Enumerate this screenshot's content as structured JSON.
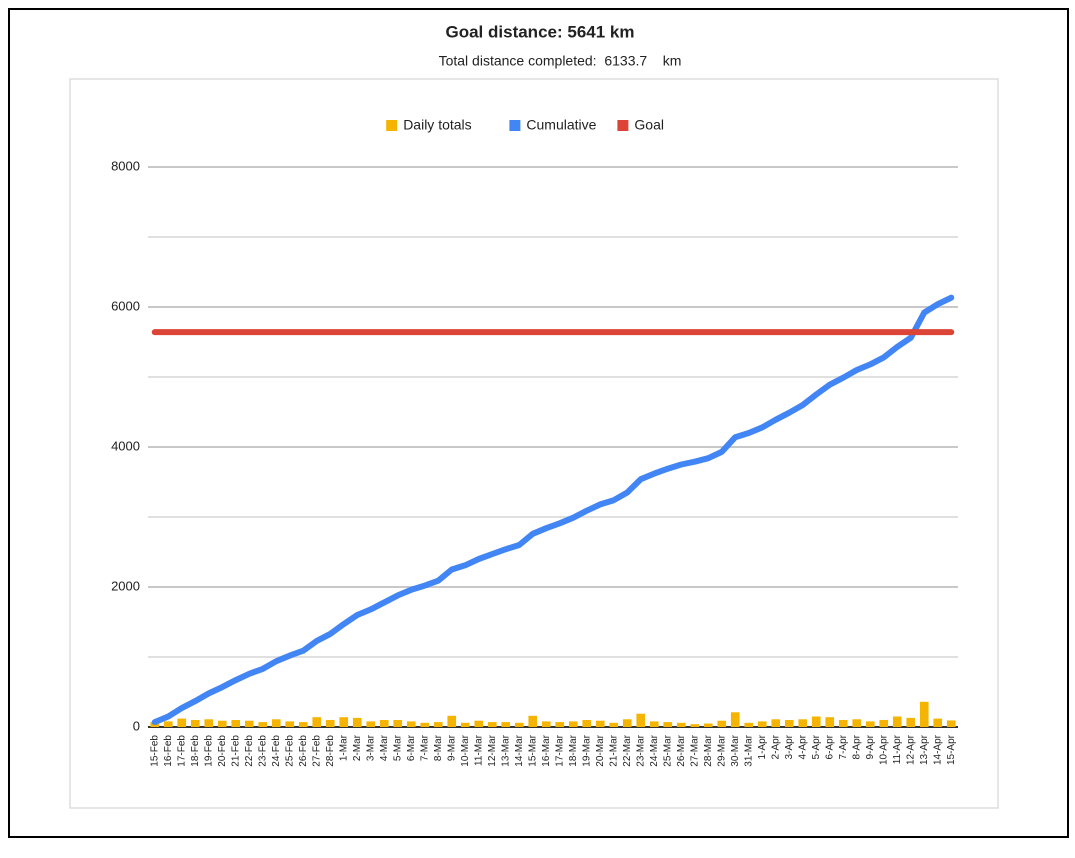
{
  "chart_data": {
    "type": "combo",
    "title": "Goal distance: 5641 km",
    "subtitle": "Total distance completed:  6133.7    km",
    "categories": [
      "15-Feb",
      "16-Feb",
      "17-Feb",
      "18-Feb",
      "19-Feb",
      "20-Feb",
      "21-Feb",
      "22-Feb",
      "23-Feb",
      "24-Feb",
      "25-Feb",
      "26-Feb",
      "27-Feb",
      "28-Feb",
      "1-Mar",
      "2-Mar",
      "3-Mar",
      "4-Mar",
      "5-Mar",
      "6-Mar",
      "7-Mar",
      "8-Mar",
      "9-Mar",
      "10-Mar",
      "11-Mar",
      "12-Mar",
      "13-Mar",
      "14-Mar",
      "15-Mar",
      "16-Mar",
      "17-Mar",
      "18-Mar",
      "19-Mar",
      "20-Mar",
      "21-Mar",
      "22-Mar",
      "23-Mar",
      "24-Mar",
      "25-Mar",
      "26-Mar",
      "27-Mar",
      "28-Mar",
      "29-Mar",
      "30-Mar",
      "31-Mar",
      "1-Apr",
      "2-Apr",
      "3-Apr",
      "4-Apr",
      "5-Apr",
      "6-Apr",
      "7-Apr",
      "8-Apr",
      "9-Apr",
      "10-Apr",
      "11-Apr",
      "12-Apr",
      "13-Apr",
      "14-Apr",
      "15-Apr"
    ],
    "series": [
      {
        "name": "Daily totals",
        "type": "bar",
        "color": "#f4b400",
        "values": [
          70,
          80,
          120,
          100,
          110,
          90,
          100,
          90,
          70,
          110,
          80,
          70,
          140,
          100,
          140,
          130,
          80,
          100,
          100,
          80,
          60,
          70,
          160,
          60,
          90,
          70,
          70,
          60,
          160,
          80,
          70,
          80,
          100,
          90,
          60,
          110,
          190,
          80,
          70,
          60,
          40,
          50,
          90,
          210,
          60,
          80,
          110,
          100,
          110,
          150,
          140,
          100,
          110,
          80,
          100,
          150,
          130,
          360,
          120,
          93.7
        ]
      },
      {
        "name": "Cumulative",
        "type": "line",
        "color": "#4285f4",
        "values": [
          70,
          150,
          270,
          370,
          480,
          570,
          670,
          760,
          830,
          940,
          1020,
          1090,
          1230,
          1330,
          1470,
          1600,
          1680,
          1780,
          1880,
          1960,
          2020,
          2090,
          2250,
          2310,
          2400,
          2470,
          2540,
          2600,
          2760,
          2840,
          2910,
          2990,
          3090,
          3180,
          3240,
          3350,
          3540,
          3620,
          3690,
          3750,
          3790,
          3840,
          3930,
          4140,
          4200,
          4280,
          4390,
          4490,
          4600,
          4750,
          4890,
          4990,
          5100,
          5180,
          5280,
          5430,
          5560,
          5920,
          6040,
          6133.7
        ]
      },
      {
        "name": "Goal",
        "type": "line",
        "color": "#db4437",
        "values": [
          5641,
          5641,
          5641,
          5641,
          5641,
          5641,
          5641,
          5641,
          5641,
          5641,
          5641,
          5641,
          5641,
          5641,
          5641,
          5641,
          5641,
          5641,
          5641,
          5641,
          5641,
          5641,
          5641,
          5641,
          5641,
          5641,
          5641,
          5641,
          5641,
          5641,
          5641,
          5641,
          5641,
          5641,
          5641,
          5641,
          5641,
          5641,
          5641,
          5641,
          5641,
          5641,
          5641,
          5641,
          5641,
          5641,
          5641,
          5641,
          5641,
          5641,
          5641,
          5641,
          5641,
          5641,
          5641,
          5641,
          5641,
          5641,
          5641,
          5641
        ]
      }
    ],
    "ylim": [
      0,
      8000
    ],
    "yticks": [
      0,
      2000,
      4000,
      6000,
      8000
    ],
    "minor_yticks": [
      1000,
      3000,
      5000,
      7000
    ],
    "grid": true,
    "legend": "top"
  }
}
